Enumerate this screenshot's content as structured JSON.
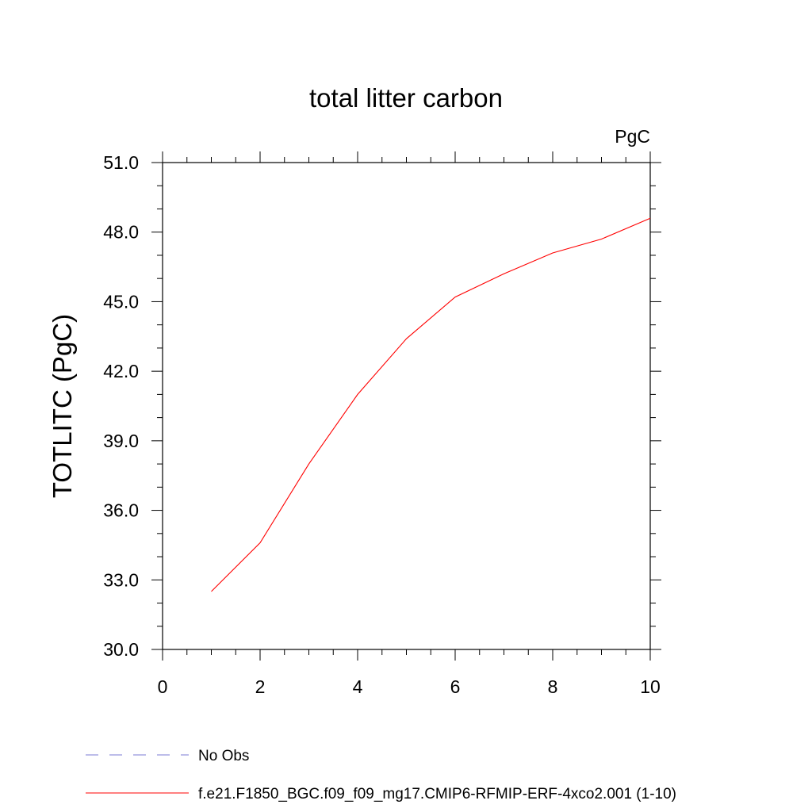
{
  "chart_data": {
    "type": "line",
    "title": "total litter carbon",
    "units_label": "PgC",
    "xlabel": "",
    "ylabel": "TOTLITC  (PgC)",
    "xlim": [
      0,
      10
    ],
    "ylim": [
      30.0,
      51.0
    ],
    "x_ticks": [
      "0",
      "2",
      "4",
      "6",
      "8",
      "10"
    ],
    "y_ticks": [
      "30.0",
      "33.0",
      "36.0",
      "39.0",
      "42.0",
      "45.0",
      "48.0",
      "51.0"
    ],
    "grid": false,
    "series": [
      {
        "name": "f.e21.F1850_BGC.f09_f09_mg17.CMIP6-RFMIP-ERF-4xco2.001 (1-10)",
        "color": "#ff0000",
        "style": "solid",
        "x": [
          1,
          2,
          3,
          4,
          5,
          6,
          7,
          8,
          9,
          10
        ],
        "y": [
          32.5,
          34.6,
          38.0,
          41.0,
          43.4,
          45.2,
          46.2,
          47.1,
          47.7,
          48.6
        ]
      }
    ],
    "legend": [
      {
        "label": "No Obs",
        "color": "#7b7bd6",
        "style": "dashed"
      },
      {
        "label": "f.e21.F1850_BGC.f09_f09_mg17.CMIP6-RFMIP-ERF-4xco2.001 (1-10)",
        "color": "#ff0000",
        "style": "solid"
      }
    ],
    "legend_position": "bottom-left"
  }
}
